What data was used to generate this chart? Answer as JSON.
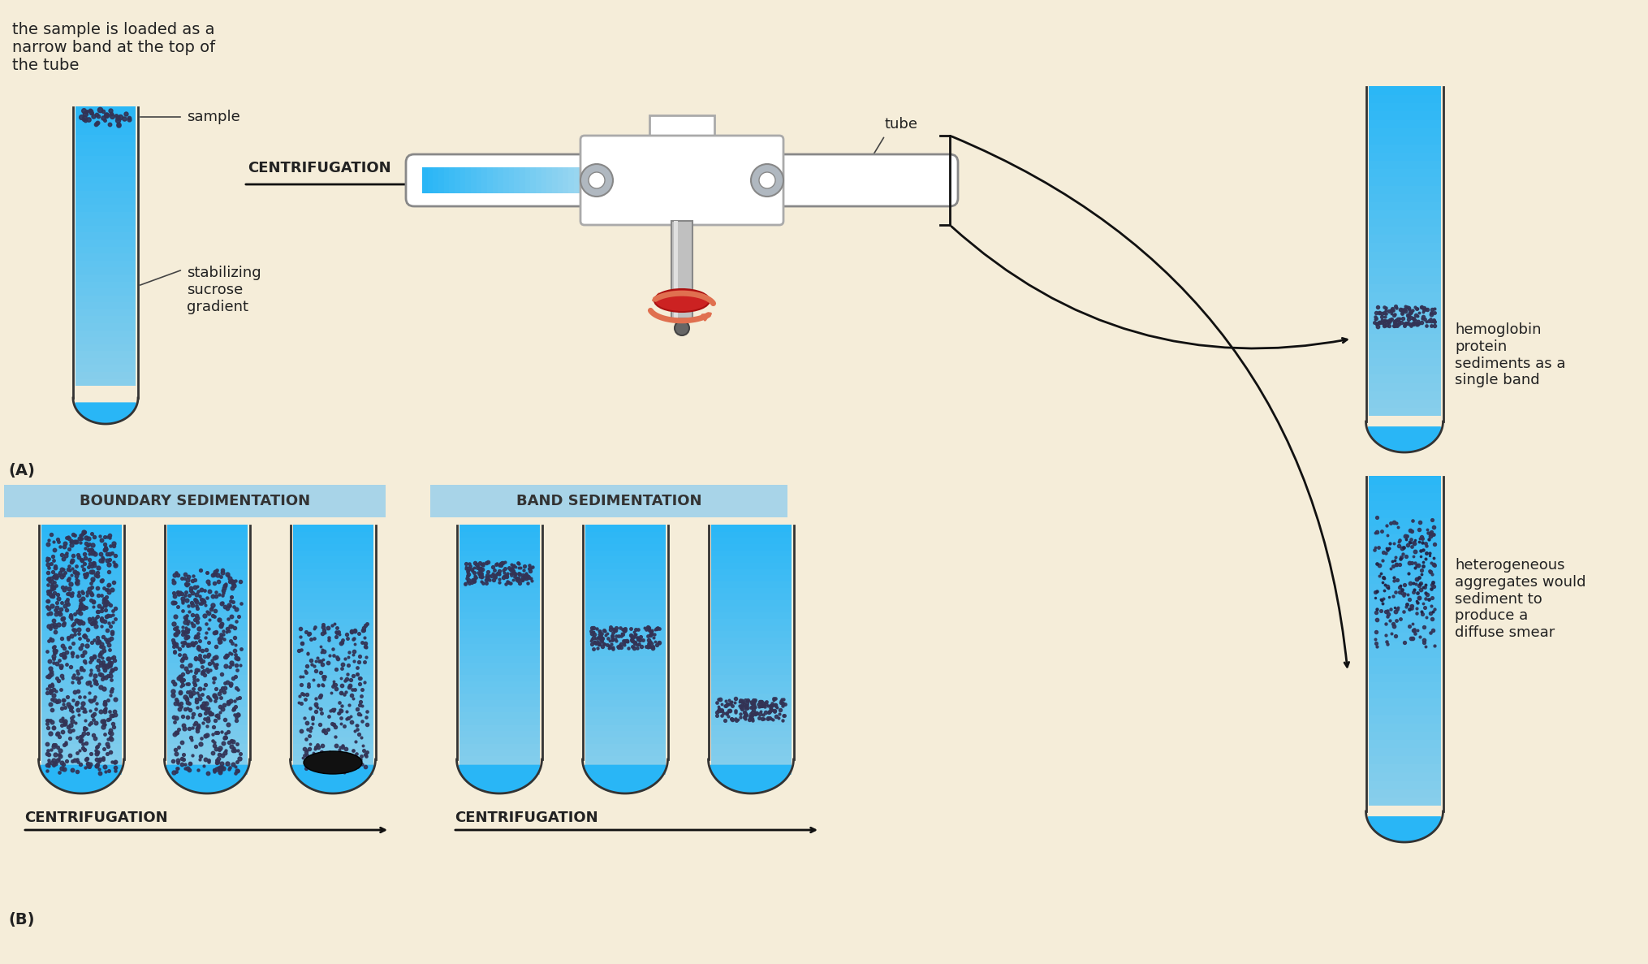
{
  "bg_color": "#F5EDD9",
  "tube_liquid_top": "#87CEEB",
  "tube_liquid_bottom": "#4FC3F7",
  "tube_outline": "#333333",
  "text_color": "#222222",
  "arrow_color": "#111111",
  "label_blue_bg": "#A8D4E8",
  "rotor_body_color": "#E8E8E8",
  "rotor_arm_color": "#B0B8C0",
  "red_disk_color": "#CC2222",
  "salmon_arrow_color": "#E88060",
  "dot_color": "#333355",
  "dark_dot_color": "#111111",
  "title_A": "(A)",
  "title_B": "(B)",
  "text_top_left": "the sample is loaded as a\nnarrow band at the top of\nthe tube",
  "label_sample": "sample",
  "label_sucrose": "stabilizing\nsucrose\ngradient",
  "label_centrifugation": "CENTRIFUGATION",
  "label_tube": "tube",
  "label_hetero": "heterogeneous\naggregates would\nsediment to\nproduce a\ndiffuse smear",
  "label_hemo": "hemoglobin\nprotein\nsediments as a\nsingle band",
  "label_boundary": "BOUNDARY SEDIMENTATION",
  "label_band": "BAND SEDIMENTATION",
  "label_centrifugation_b": "CENTRIFUGATION",
  "label_centrifugation_b2": "CENTRIFUGATION"
}
